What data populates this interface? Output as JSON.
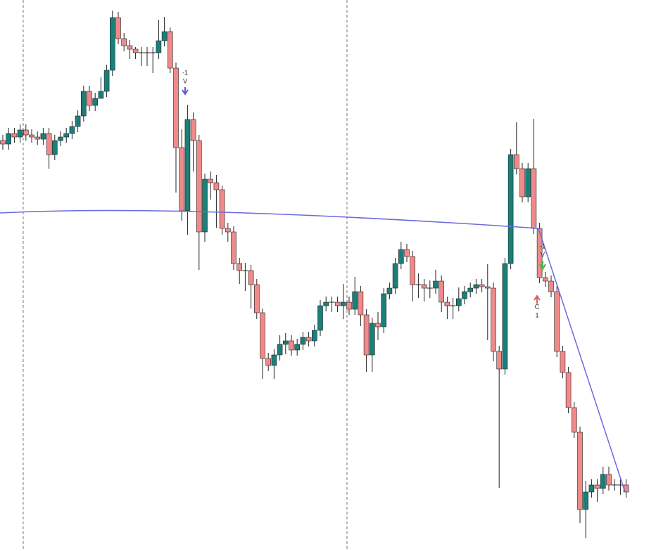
{
  "chart_data": {
    "type": "candlestick",
    "ylim": [
      0,
      784
    ],
    "up_color": "#1b7f79",
    "down_color": "#f08a8a",
    "edge_color": "#222222",
    "annotations": [
      "-1",
      "V",
      "-1",
      "V",
      "C",
      "1"
    ],
    "open": [
      584,
      579,
      594,
      589,
      599,
      592,
      589,
      586,
      594,
      564,
      584,
      589,
      594,
      604,
      619,
      654,
      634,
      644,
      654,
      684,
      759,
      729,
      719,
      714,
      709,
      709,
      709,
      709,
      726,
      739,
      687,
      574,
      484,
      614,
      584,
      454,
      529,
      524,
      514,
      459,
      454,
      409,
      399,
      399,
      379,
      339,
      274,
      264,
      279,
      294,
      299,
      286,
      294,
      304,
      299,
      314,
      349,
      354,
      354,
      349,
      354,
      344,
      369,
      336,
      279,
      324,
      319,
      366,
      374,
      409,
      429,
      419,
      379,
      379,
      374,
      374,
      384,
      354,
      349,
      349,
      359,
      369,
      374,
      379,
      376,
      374,
      284,
      259,
      409,
      564,
      544,
      504,
      544,
      459,
      389,
      384,
      369,
      284,
      254,
      204,
      169,
      59,
      84,
      94,
      89,
      109,
      94,
      94,
      94
    ],
    "high": [
      592,
      602,
      602,
      607,
      607,
      600,
      597,
      602,
      602,
      592,
      597,
      602,
      612,
      627,
      662,
      662,
      652,
      674,
      692,
      769,
      767,
      737,
      727,
      717,
      717,
      717,
      717,
      756,
      760,
      745,
      695,
      600,
      635,
      624,
      592,
      537,
      540,
      535,
      520,
      467,
      462,
      417,
      410,
      407,
      387,
      345,
      282,
      287,
      307,
      310,
      307,
      302,
      312,
      312,
      322,
      357,
      362,
      362,
      362,
      380,
      362,
      390,
      377,
      344,
      332,
      340,
      374,
      382,
      417,
      440,
      437,
      427,
      395,
      387,
      385,
      400,
      392,
      362,
      360,
      375,
      377,
      382,
      387,
      387,
      408,
      382,
      292,
      417,
      572,
      610,
      552,
      552,
      615,
      467,
      397,
      392,
      377,
      292,
      262,
      212,
      177,
      100,
      102,
      102,
      120,
      120,
      102,
      102,
      102
    ],
    "low": [
      571,
      571,
      581,
      581,
      584,
      581,
      578,
      578,
      544,
      556,
      576,
      581,
      586,
      596,
      611,
      626,
      626,
      646,
      646,
      676,
      721,
      711,
      700,
      700,
      690,
      690,
      680,
      700,
      718,
      680,
      510,
      470,
      450,
      540,
      400,
      440,
      500,
      460,
      450,
      440,
      400,
      380,
      370,
      345,
      330,
      245,
      256,
      245,
      271,
      280,
      278,
      278,
      286,
      291,
      291,
      306,
      341,
      340,
      340,
      330,
      336,
      336,
      320,
      255,
      255,
      300,
      310,
      358,
      366,
      401,
      411,
      355,
      360,
      355,
      360,
      366,
      340,
      330,
      330,
      341,
      351,
      361,
      366,
      368,
      300,
      270,
      90,
      251,
      401,
      536,
      496,
      496,
      451,
      381,
      376,
      361,
      276,
      246,
      196,
      161,
      40,
      18,
      76,
      70,
      81,
      86,
      86,
      80,
      76
    ],
    "close": [
      579,
      594,
      589,
      599,
      592,
      589,
      586,
      594,
      564,
      584,
      589,
      594,
      604,
      619,
      654,
      634,
      644,
      654,
      684,
      759,
      729,
      719,
      714,
      709,
      709,
      709,
      709,
      726,
      739,
      687,
      574,
      484,
      614,
      584,
      454,
      529,
      524,
      514,
      459,
      454,
      409,
      399,
      399,
      379,
      339,
      274,
      264,
      279,
      294,
      299,
      286,
      294,
      304,
      299,
      314,
      349,
      354,
      354,
      349,
      354,
      344,
      369,
      336,
      279,
      324,
      319,
      366,
      374,
      409,
      429,
      419,
      379,
      379,
      374,
      374,
      384,
      354,
      349,
      349,
      359,
      369,
      374,
      379,
      376,
      374,
      284,
      259,
      409,
      564,
      544,
      504,
      544,
      459,
      389,
      384,
      369,
      284,
      254,
      204,
      169,
      59,
      84,
      94,
      89,
      109,
      94,
      94,
      94,
      84
    ]
  }
}
